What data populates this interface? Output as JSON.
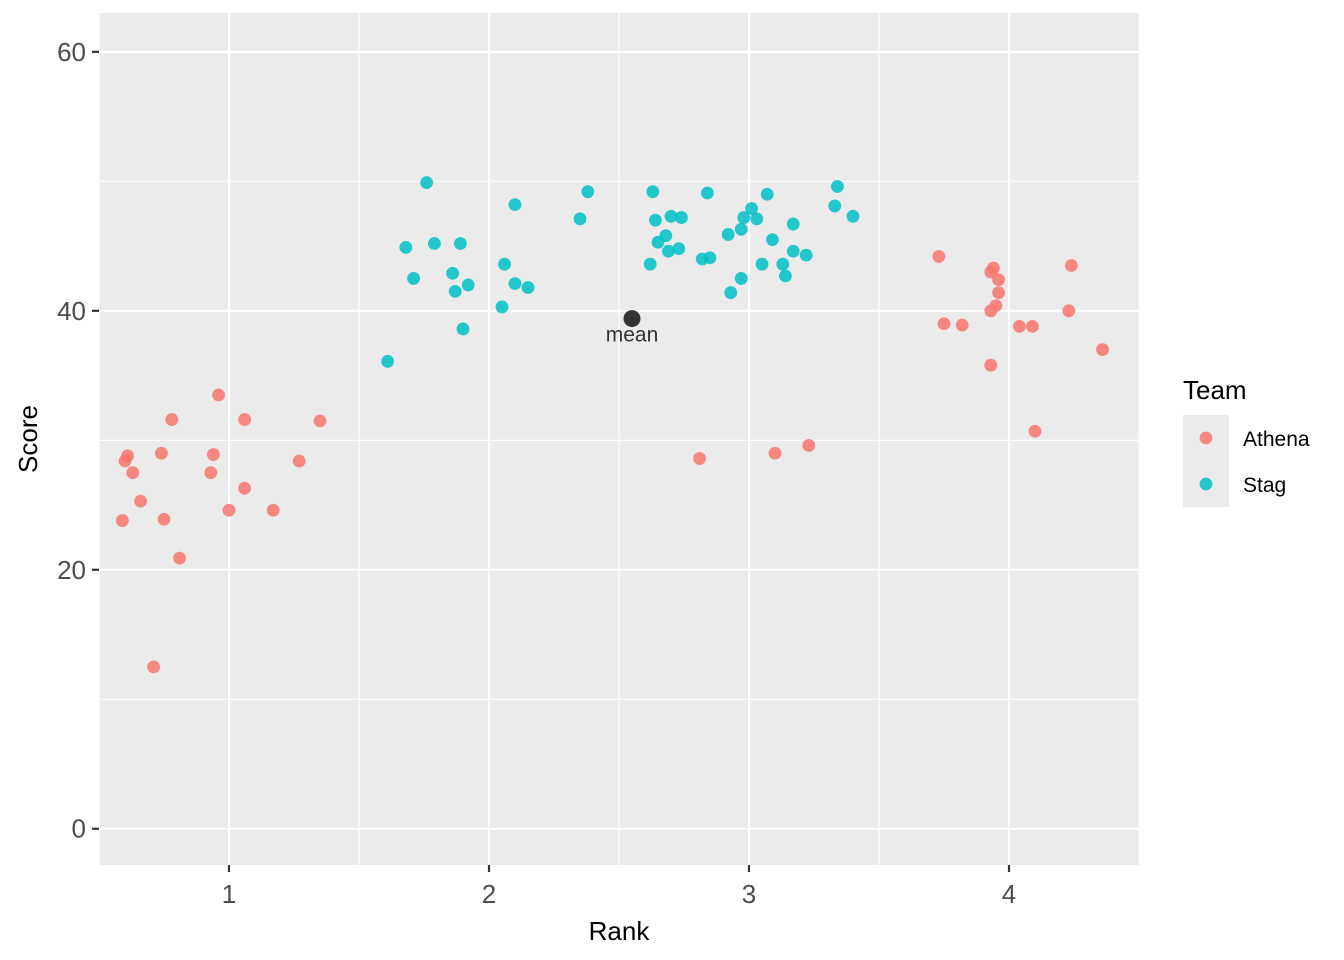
{
  "chart_data": {
    "type": "scatter",
    "xlabel": "Rank",
    "ylabel": "Score",
    "xlim": [
      0.5,
      4.5
    ],
    "ylim": [
      -2.8,
      63
    ],
    "x_ticks": [
      1,
      2,
      3,
      4
    ],
    "x_tick_labels": [
      "1",
      "2",
      "3",
      "4"
    ],
    "y_ticks": [
      0,
      20,
      40,
      60
    ],
    "y_tick_labels": [
      "0",
      "20",
      "40",
      "60"
    ],
    "grid": true,
    "legend": {
      "title": "Team",
      "position": "right",
      "entries": [
        {
          "label": "Athena",
          "color": "#F8766D"
        },
        {
          "label": "Stag",
          "color": "#00BFC4"
        }
      ]
    },
    "series": [
      {
        "name": "Athena",
        "color": "#F8766D",
        "points": [
          {
            "x": 0.59,
            "y": 23.8
          },
          {
            "x": 0.6,
            "y": 28.4
          },
          {
            "x": 0.61,
            "y": 28.8
          },
          {
            "x": 0.63,
            "y": 27.5
          },
          {
            "x": 0.66,
            "y": 25.3
          },
          {
            "x": 0.71,
            "y": 12.5
          },
          {
            "x": 0.74,
            "y": 29.0
          },
          {
            "x": 0.75,
            "y": 23.9
          },
          {
            "x": 0.78,
            "y": 31.6
          },
          {
            "x": 0.81,
            "y": 20.9
          },
          {
            "x": 0.93,
            "y": 27.5
          },
          {
            "x": 0.94,
            "y": 28.9
          },
          {
            "x": 0.96,
            "y": 33.5
          },
          {
            "x": 1.0,
            "y": 24.6
          },
          {
            "x": 1.06,
            "y": 31.6
          },
          {
            "x": 1.06,
            "y": 26.3
          },
          {
            "x": 1.17,
            "y": 24.6
          },
          {
            "x": 1.27,
            "y": 28.4
          },
          {
            "x": 1.35,
            "y": 31.5
          },
          {
            "x": 2.81,
            "y": 28.6
          },
          {
            "x": 3.1,
            "y": 29.0
          },
          {
            "x": 3.23,
            "y": 29.6
          },
          {
            "x": 3.73,
            "y": 44.2
          },
          {
            "x": 3.75,
            "y": 39.0
          },
          {
            "x": 3.82,
            "y": 38.9
          },
          {
            "x": 3.93,
            "y": 43.0
          },
          {
            "x": 3.94,
            "y": 43.3
          },
          {
            "x": 3.93,
            "y": 40.0
          },
          {
            "x": 3.95,
            "y": 40.4
          },
          {
            "x": 3.96,
            "y": 42.4
          },
          {
            "x": 3.96,
            "y": 41.4
          },
          {
            "x": 3.93,
            "y": 35.8
          },
          {
            "x": 4.04,
            "y": 38.8
          },
          {
            "x": 4.09,
            "y": 38.8
          },
          {
            "x": 4.1,
            "y": 30.7
          },
          {
            "x": 4.23,
            "y": 40.0
          },
          {
            "x": 4.24,
            "y": 43.5
          },
          {
            "x": 4.36,
            "y": 37.0
          }
        ]
      },
      {
        "name": "Stag",
        "color": "#00BFC4",
        "points": [
          {
            "x": 1.61,
            "y": 36.1
          },
          {
            "x": 1.68,
            "y": 44.9
          },
          {
            "x": 1.71,
            "y": 42.5
          },
          {
            "x": 1.76,
            "y": 49.9
          },
          {
            "x": 1.79,
            "y": 45.2
          },
          {
            "x": 1.86,
            "y": 42.9
          },
          {
            "x": 1.87,
            "y": 41.5
          },
          {
            "x": 1.89,
            "y": 45.2
          },
          {
            "x": 1.9,
            "y": 38.6
          },
          {
            "x": 1.92,
            "y": 42.0
          },
          {
            "x": 2.05,
            "y": 40.3
          },
          {
            "x": 2.06,
            "y": 43.6
          },
          {
            "x": 2.1,
            "y": 42.1
          },
          {
            "x": 2.1,
            "y": 48.2
          },
          {
            "x": 2.15,
            "y": 41.8
          },
          {
            "x": 2.35,
            "y": 47.1
          },
          {
            "x": 2.38,
            "y": 49.2
          },
          {
            "x": 2.62,
            "y": 43.6
          },
          {
            "x": 2.63,
            "y": 49.2
          },
          {
            "x": 2.65,
            "y": 45.3
          },
          {
            "x": 2.64,
            "y": 47.0
          },
          {
            "x": 2.68,
            "y": 45.8
          },
          {
            "x": 2.69,
            "y": 44.6
          },
          {
            "x": 2.7,
            "y": 47.3
          },
          {
            "x": 2.73,
            "y": 44.8
          },
          {
            "x": 2.74,
            "y": 47.2
          },
          {
            "x": 2.82,
            "y": 44.0
          },
          {
            "x": 2.84,
            "y": 49.1
          },
          {
            "x": 2.85,
            "y": 44.1
          },
          {
            "x": 2.92,
            "y": 45.9
          },
          {
            "x": 2.93,
            "y": 41.4
          },
          {
            "x": 2.97,
            "y": 46.3
          },
          {
            "x": 2.97,
            "y": 42.5
          },
          {
            "x": 2.98,
            "y": 47.2
          },
          {
            "x": 3.01,
            "y": 47.9
          },
          {
            "x": 3.03,
            "y": 47.1
          },
          {
            "x": 3.05,
            "y": 43.6
          },
          {
            "x": 3.07,
            "y": 49.0
          },
          {
            "x": 3.09,
            "y": 45.5
          },
          {
            "x": 3.13,
            "y": 43.6
          },
          {
            "x": 3.14,
            "y": 42.7
          },
          {
            "x": 3.17,
            "y": 44.6
          },
          {
            "x": 3.17,
            "y": 46.7
          },
          {
            "x": 3.22,
            "y": 44.3
          },
          {
            "x": 3.33,
            "y": 48.1
          },
          {
            "x": 3.34,
            "y": 49.6
          },
          {
            "x": 3.4,
            "y": 47.3
          }
        ]
      }
    ],
    "annotations": [
      {
        "label": "mean",
        "x": 2.55,
        "y": 39.4,
        "color": "#333333"
      }
    ]
  }
}
